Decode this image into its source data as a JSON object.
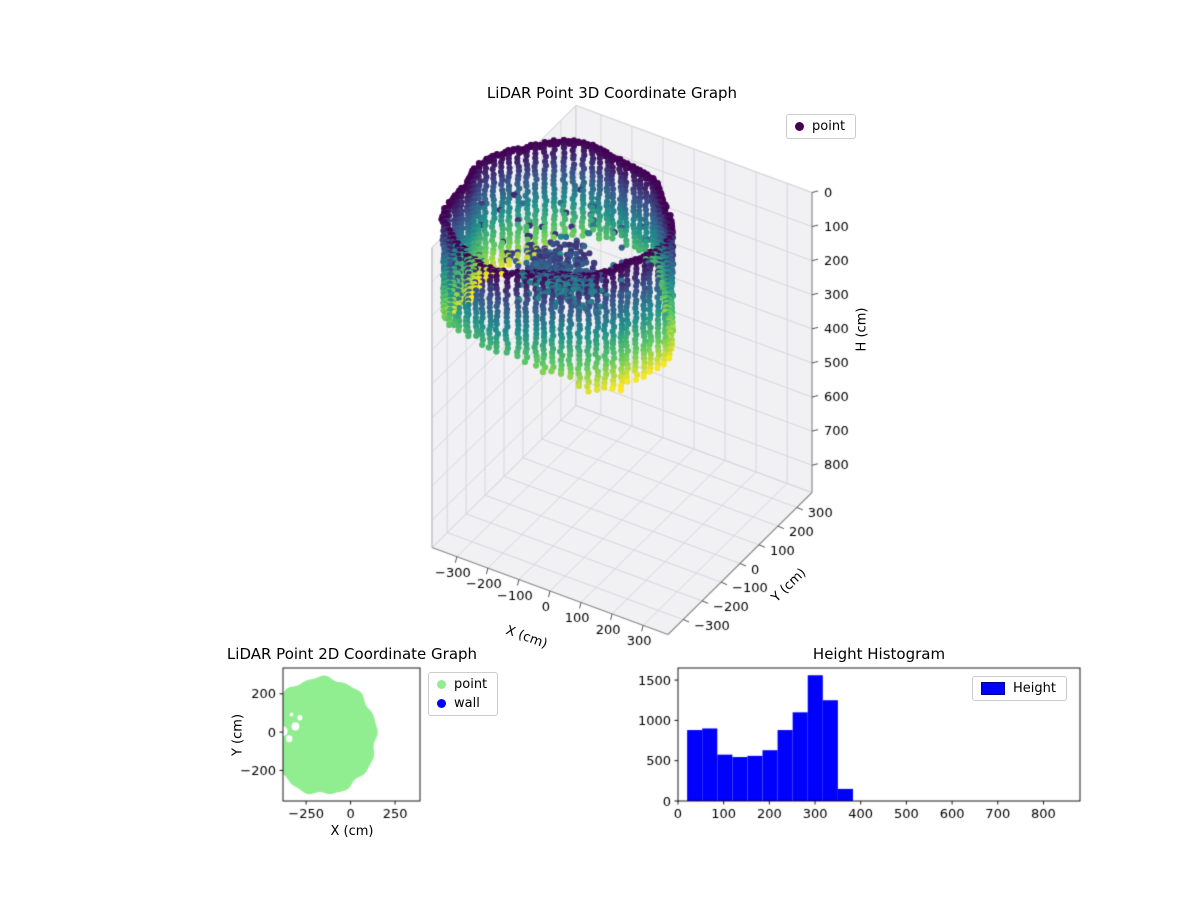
{
  "figure": {
    "background": "#ffffff"
  },
  "chart_data": [
    {
      "type": "scatter3d",
      "title": "LiDAR Point 3D Coordinate Graph",
      "xlabel": "X (cm)",
      "ylabel": "Y (cm)",
      "zlabel": "H (cm)",
      "xlim": [
        -380,
        380
      ],
      "ylim": [
        -380,
        380
      ],
      "zlim": [
        0,
        880
      ],
      "z_axis_inverted": true,
      "xticks": [
        -300,
        -200,
        -100,
        0,
        100,
        200,
        300
      ],
      "yticks": [
        -300,
        -200,
        -100,
        0,
        100,
        200,
        300
      ],
      "zticks": [
        0,
        100,
        200,
        300,
        400,
        500,
        600,
        700,
        800
      ],
      "grid": true,
      "legend": [
        {
          "label": "point",
          "color": "#440154"
        }
      ],
      "points": {
        "shape": "cylindrical-ring",
        "description": "LiDAR room scan: vertical dotted columns forming a ring, colored by height (viridis, dark=0 top, yellow=bottom)",
        "center_xy": [
          -170,
          -60
        ],
        "base_radius_cm": 305,
        "radius_variation_cm": 30,
        "height_min_cm": 0,
        "height_max_cm": 355,
        "columns": 76,
        "dot_spacing_cm": 13,
        "colormap": "viridis",
        "color_by": "height",
        "cluster": {
          "center_xy": [
            -110,
            -150
          ],
          "sigma_xy": [
            55,
            40
          ],
          "height_range_cm": [
            50,
            165
          ],
          "count": 300
        },
        "interior_speckle": {
          "count": 70,
          "height_range_cm": [
            40,
            180
          ]
        }
      }
    },
    {
      "type": "scatter",
      "title": "LiDAR Point 2D Coordinate Graph",
      "xlabel": "X (cm)",
      "ylabel": "Y (cm)",
      "xlim": [
        -380,
        390
      ],
      "ylim": [
        -360,
        335
      ],
      "xticks": [
        -250,
        0,
        250
      ],
      "yticks": [
        -200,
        0,
        200
      ],
      "legend": [
        {
          "label": "point",
          "color": "#90ee90"
        },
        {
          "label": "wall",
          "color": "#0000ff"
        }
      ],
      "region": {
        "type": "disk",
        "color": "#90ee90",
        "center": [
          -160,
          -20
        ],
        "radius": 305,
        "holes": [
          [
            -310,
            30,
            22
          ],
          [
            -345,
            -35,
            18
          ],
          [
            -285,
            75,
            14
          ],
          [
            -332,
            92,
            10
          ],
          [
            -380,
            5,
            26
          ]
        ]
      }
    },
    {
      "type": "bar",
      "title": "Height Histogram",
      "xlabel": "",
      "ylabel": "",
      "xlim": [
        0,
        880
      ],
      "ylim": [
        0,
        1650
      ],
      "xticks": [
        0,
        100,
        200,
        300,
        400,
        500,
        600,
        700,
        800
      ],
      "yticks": [
        0,
        500,
        1000,
        1500
      ],
      "bar_color": "#0000ff",
      "legend": [
        {
          "label": "Height",
          "color": "#0000ff"
        }
      ],
      "bin_edges": [
        20,
        53,
        86,
        119,
        152,
        185,
        218,
        251,
        284,
        317,
        350,
        383
      ],
      "values": [
        880,
        900,
        575,
        545,
        560,
        630,
        880,
        1100,
        1560,
        1250,
        150
      ]
    }
  ]
}
